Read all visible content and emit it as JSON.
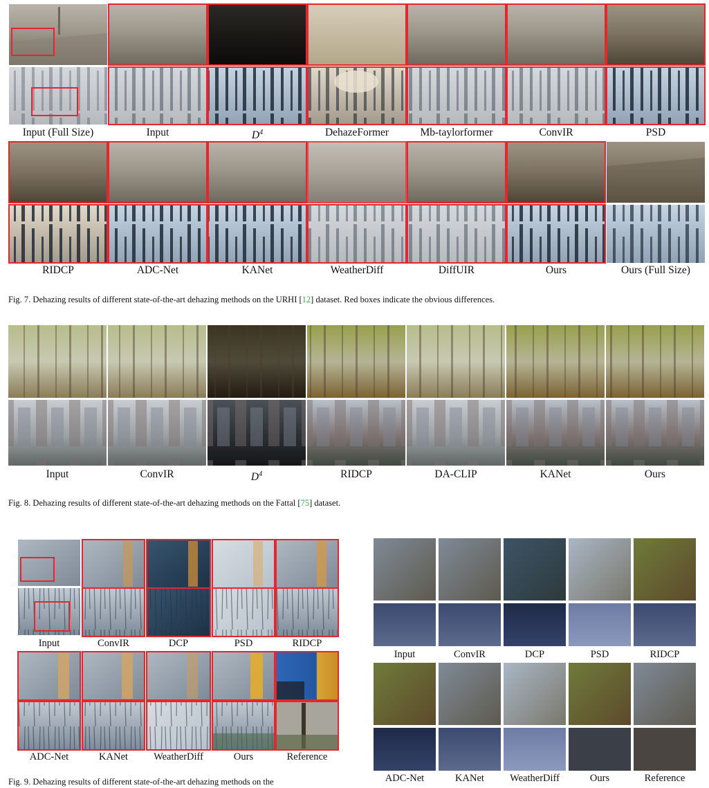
{
  "fig7": {
    "labels": [
      "Input (Full Size)",
      "Input",
      "D",
      "DehazeFormer",
      "Mb-taylorformer",
      "ConvIR",
      "PSD"
    ],
    "labels2": [
      "RIDCP",
      "ADC-Net",
      "KANet",
      "WeatherDiff",
      "DiffUIR",
      "Ours",
      "Ours (Full Size)"
    ],
    "d_sup": "4",
    "caption_pre": "Fig. 7.  Dehazing results of different state-of-the-art dehazing methods on the URHI [",
    "caption_ref": "12",
    "caption_post": "] dataset. Red boxes indicate the obvious differences."
  },
  "fig8": {
    "labels": [
      "Input",
      "ConvIR",
      "D",
      "RIDCP",
      "DA-CLIP",
      "KANet",
      "Ours"
    ],
    "d_sup": "4",
    "caption_pre": "Fig. 8.  Dehazing results of different state-of-the-art dehazing methods on the Fattal [",
    "caption_ref": "75",
    "caption_post": "] dataset."
  },
  "fig9": {
    "labels": [
      "Input",
      "ConvIR",
      "DCP",
      "PSD",
      "RIDCP"
    ],
    "labels2": [
      "ADC-Net",
      "KANet",
      "WeatherDiff",
      "Ours",
      "Reference"
    ],
    "caption": "Fig. 9.  Dehazing results of different state-of-the-art dehazing methods on the"
  },
  "fig10": {
    "labels": [
      "Input",
      "ConvIR",
      "DCP",
      "PSD",
      "RIDCP"
    ],
    "labels2": [
      "ADC-Net",
      "KANet",
      "WeatherDiff",
      "Ours",
      "Reference"
    ]
  },
  "colors": {
    "highlight": "#e5262c",
    "citation": "#22b14c"
  }
}
